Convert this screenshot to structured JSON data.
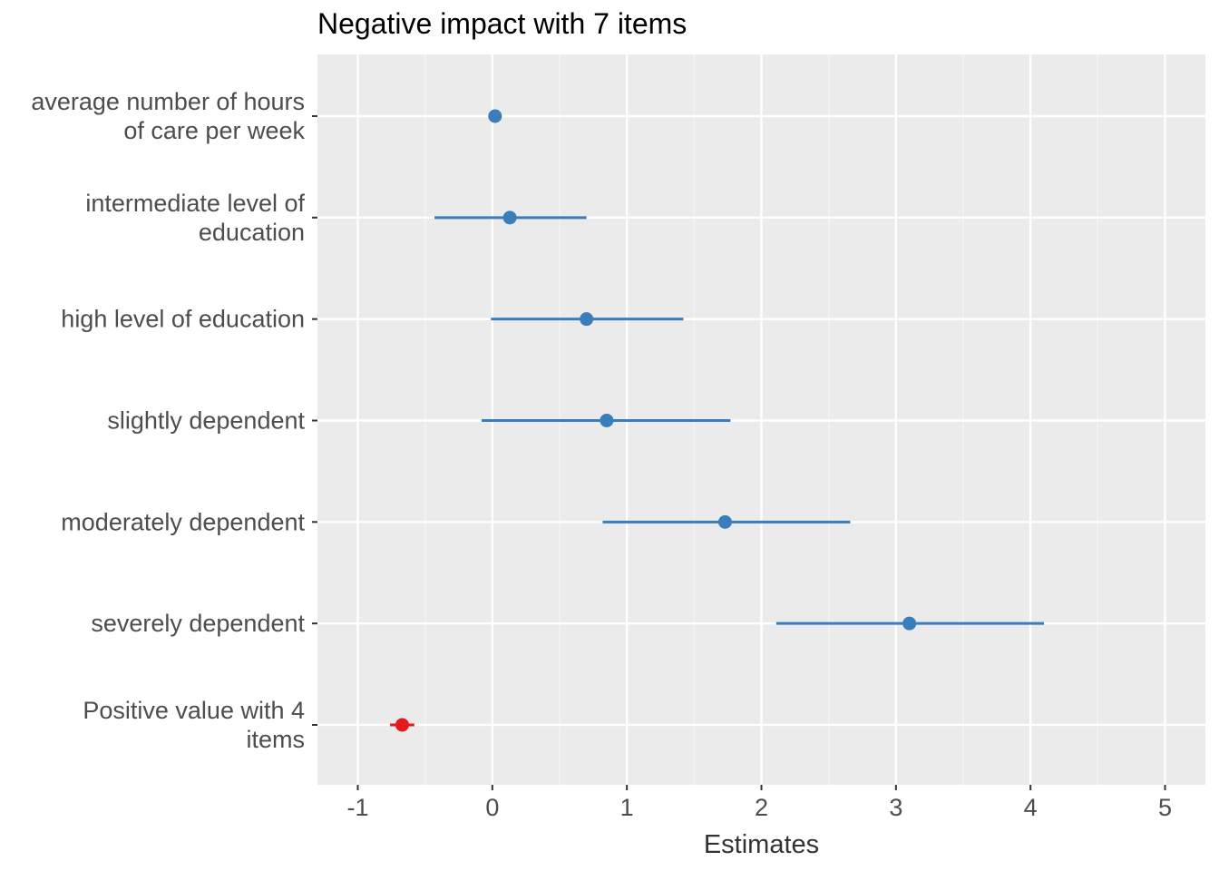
{
  "chart_data": {
    "type": "scatter",
    "title": "Negative impact with 7 items",
    "xlabel": "Estimates",
    "ylabel": "",
    "xlim": [
      -1.3,
      5.3
    ],
    "x_ticks": [
      "-1",
      "0",
      "1",
      "2",
      "3",
      "4",
      "5"
    ],
    "x_tick_values": [
      -1,
      0,
      1,
      2,
      3,
      4,
      5
    ],
    "grid": true,
    "background": "#ebebeb",
    "colors": {
      "positive_estimate": "#3a7dba",
      "negative_estimate": "#e31a1c"
    },
    "points": [
      {
        "label": "average number of hours\nof care per week",
        "estimate": 0.02,
        "low": 0.0,
        "high": 0.04
      },
      {
        "label": "intermediate level of\neducation",
        "estimate": 0.13,
        "low": -0.43,
        "high": 0.7
      },
      {
        "label": "high level of education",
        "estimate": 0.7,
        "low": -0.01,
        "high": 1.42
      },
      {
        "label": "slightly dependent",
        "estimate": 0.85,
        "low": -0.08,
        "high": 1.77
      },
      {
        "label": "moderately dependent",
        "estimate": 1.73,
        "low": 0.82,
        "high": 2.66
      },
      {
        "label": "severely dependent",
        "estimate": 3.1,
        "low": 2.11,
        "high": 4.1
      },
      {
        "label": "Positive value with 4\nitems",
        "estimate": -0.67,
        "low": -0.76,
        "high": -0.58
      }
    ]
  }
}
